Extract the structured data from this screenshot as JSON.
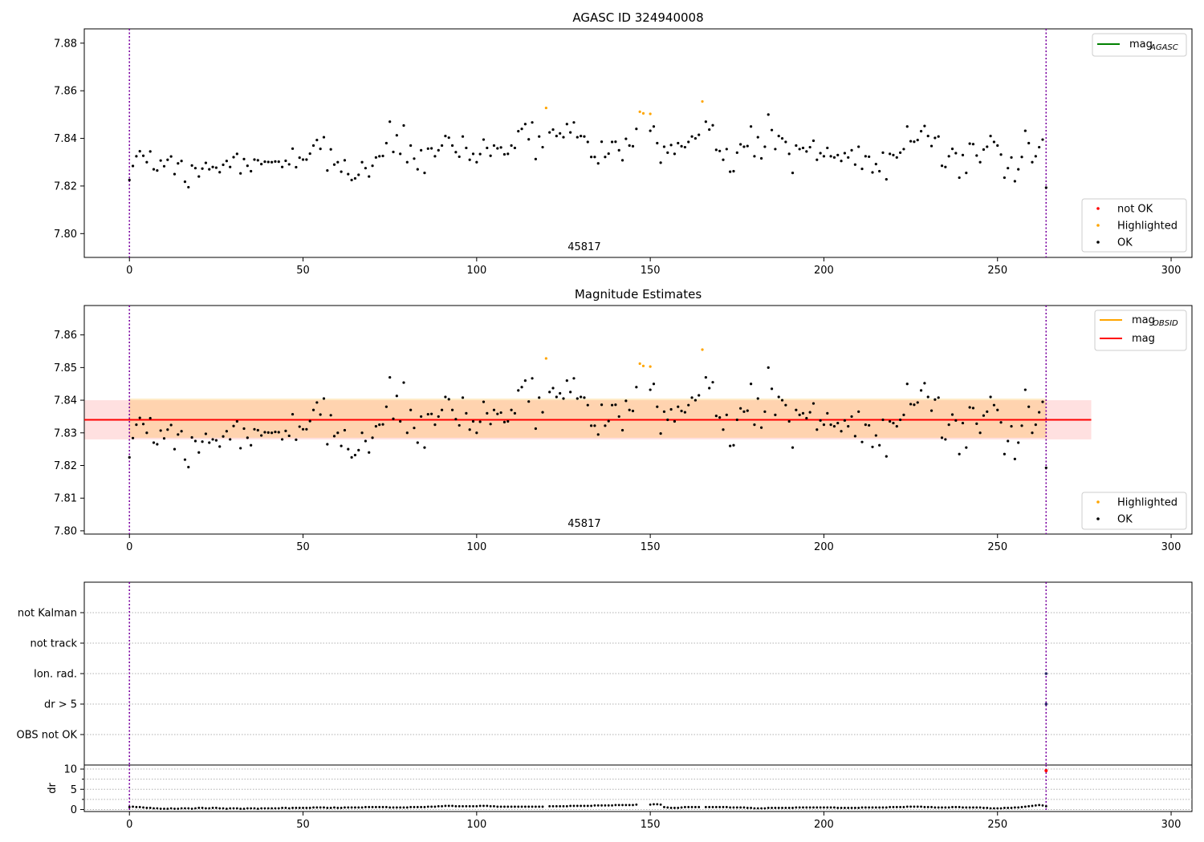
{
  "chart_data": [
    {
      "type": "scatter",
      "title": "AGASC ID 324940008",
      "annotation": "45817",
      "xlim": [
        -13,
        306
      ],
      "ylim": [
        7.79,
        7.886
      ],
      "xticks": [
        0,
        50,
        100,
        150,
        200,
        250,
        300
      ],
      "yticks": [
        7.8,
        7.82,
        7.84,
        7.86,
        7.88
      ],
      "vlines": [
        0,
        264
      ],
      "legend_lines": [
        {
          "label": "mag",
          "sub": "AGASC",
          "color": "#008000"
        }
      ],
      "legend_points": [
        {
          "label": "not OK",
          "color": "#ff0000"
        },
        {
          "label": "Highlighted",
          "color": "#ffa500"
        },
        {
          "label": "OK",
          "color": "#000000"
        }
      ],
      "legend_lines_loc": "upper right",
      "legend_points_loc": "lower right"
    },
    {
      "type": "scatter",
      "title": "Magnitude Estimates",
      "annotation": "45817",
      "xlim": [
        -13,
        306
      ],
      "ylim": [
        7.799,
        7.869
      ],
      "xticks": [
        0,
        50,
        100,
        150,
        200,
        250,
        300
      ],
      "yticks": [
        7.8,
        7.81,
        7.82,
        7.83,
        7.84,
        7.85,
        7.86
      ],
      "vlines": [
        0,
        264
      ],
      "mag_line": 7.834,
      "band_mag": [
        7.828,
        7.84
      ],
      "band_obsid": [
        7.8285,
        7.8405
      ],
      "band_x_end": 277,
      "legend_lines": [
        {
          "label": "mag",
          "sub": "OBSID",
          "color": "#ffa500"
        },
        {
          "label": "mag",
          "sub": "",
          "color": "#ff0000"
        }
      ],
      "legend_points": [
        {
          "label": "Highlighted",
          "color": "#ffa500"
        },
        {
          "label": "OK",
          "color": "#000000"
        }
      ],
      "legend_lines_loc": "upper right",
      "legend_points_loc": "lower right"
    },
    {
      "type": "scatter",
      "title": "",
      "xlim": [
        -13,
        306
      ],
      "yticks_labels": [
        "not Kalman",
        "not track",
        "Ion. rad.",
        "dr > 5",
        "OBS not OK"
      ],
      "vlines": [
        0,
        264
      ],
      "flag_marks": [
        {
          "flag": "Ion. rad.",
          "x": 264
        },
        {
          "flag": "dr > 5",
          "x": 264
        }
      ]
    },
    {
      "type": "scatter",
      "title": "",
      "ylabel": "dr",
      "xlim": [
        -13,
        306
      ],
      "ylim": [
        -0.5,
        11
      ],
      "yticks": [
        0,
        5,
        10
      ],
      "xticks": [
        0,
        50,
        100,
        150,
        200,
        250,
        300
      ],
      "vlines": [
        0,
        264
      ],
      "red_point": {
        "x": 264,
        "y": 9.6
      }
    }
  ],
  "series": {
    "x": [
      0,
      1,
      2,
      3,
      4,
      5,
      6,
      7,
      8,
      9,
      10,
      11,
      12,
      13,
      14,
      15,
      16,
      17,
      18,
      19,
      20,
      21,
      22,
      23,
      24,
      25,
      26,
      27,
      28,
      29,
      30,
      31,
      32,
      33,
      34,
      35,
      36,
      37,
      38,
      39,
      40,
      41,
      42,
      43,
      44,
      45,
      46,
      47,
      48,
      49,
      50,
      51,
      52,
      53,
      54,
      55,
      56,
      57,
      58,
      59,
      60,
      61,
      62,
      63,
      64,
      65,
      66,
      67,
      68,
      69,
      70,
      71,
      72,
      73,
      74,
      75,
      76,
      77,
      78,
      79,
      80,
      81,
      82,
      83,
      84,
      85,
      86,
      87,
      88,
      89,
      90,
      91,
      92,
      93,
      94,
      95,
      96,
      97,
      98,
      99,
      100,
      101,
      102,
      103,
      104,
      105,
      106,
      107,
      108,
      109,
      110,
      111,
      112,
      113,
      114,
      115,
      116,
      117,
      118,
      119,
      121,
      122,
      123,
      124,
      125,
      126,
      127,
      128,
      129,
      130,
      131,
      132,
      133,
      134,
      135,
      136,
      137,
      138,
      139,
      140,
      141,
      142,
      143,
      144,
      145,
      146,
      150,
      151,
      152,
      153,
      154,
      155,
      156,
      157,
      158,
      159,
      160,
      161,
      162,
      163,
      164,
      166,
      167,
      168,
      169,
      170,
      171,
      172,
      173,
      174,
      175,
      176,
      177,
      178,
      179,
      180,
      181,
      182,
      183,
      184,
      185,
      186,
      187,
      188,
      189,
      190,
      191,
      192,
      193,
      194,
      195,
      196,
      197,
      198,
      199,
      200,
      201,
      202,
      203,
      204,
      205,
      206,
      207,
      208,
      209,
      210,
      211,
      212,
      213,
      214,
      215,
      216,
      217,
      218,
      219,
      220,
      221,
      222,
      223,
      224,
      225,
      226,
      227,
      228,
      229,
      230,
      231,
      232,
      233,
      234,
      235,
      236,
      237,
      238,
      239,
      240,
      241,
      242,
      243,
      244,
      245,
      246,
      247,
      248,
      249,
      250,
      251,
      252,
      253,
      254,
      255,
      256,
      257,
      258,
      259,
      260,
      261,
      262,
      263,
      264
    ],
    "y": [
      7.8225,
      7.8284,
      7.8325,
      7.8346,
      7.8327,
      7.83,
      7.8345,
      7.827,
      7.8265,
      7.8307,
      7.8283,
      7.831,
      7.8324,
      7.825,
      7.8295,
      7.8305,
      7.8218,
      7.8195,
      7.8286,
      7.8275,
      7.824,
      7.8273,
      7.8297,
      7.827,
      7.828,
      7.8277,
      7.8258,
      7.8289,
      7.8305,
      7.828,
      7.8321,
      7.8335,
      7.8253,
      7.8313,
      7.8285,
      7.8262,
      7.8311,
      7.8308,
      7.8292,
      7.8302,
      7.8301,
      7.83,
      7.8303,
      7.8302,
      7.828,
      7.8306,
      7.8291,
      7.8357,
      7.8279,
      7.8319,
      7.8311,
      7.8311,
      7.8336,
      7.837,
      7.8393,
      7.8356,
      7.8405,
      7.8265,
      7.8354,
      7.829,
      7.83,
      7.826,
      7.8308,
      7.825,
      7.8225,
      7.8232,
      7.8247,
      7.83,
      7.8275,
      7.824,
      7.8285,
      7.832,
      7.8325,
      7.8326,
      7.838,
      7.847,
      7.8343,
      7.8413,
      7.8335,
      7.8454,
      7.83,
      7.837,
      7.8315,
      7.827,
      7.835,
      7.8255,
      7.8357,
      7.8358,
      7.8325,
      7.835,
      7.837,
      7.841,
      7.8403,
      7.837,
      7.8342,
      7.8323,
      7.8408,
      7.836,
      7.831,
      7.8335,
      7.83,
      7.8334,
      7.8395,
      7.836,
      7.8327,
      7.837,
      7.8358,
      7.8362,
      7.8333,
      7.8335,
      7.837,
      7.836,
      7.843,
      7.844,
      7.846,
      7.8396,
      7.8467,
      7.8313,
      7.8408,
      7.8363,
      7.8425,
      7.8437,
      7.841,
      7.8421,
      7.8405,
      7.846,
      7.8425,
      7.8467,
      7.8405,
      7.841,
      7.8408,
      7.8385,
      7.8322,
      7.8322,
      7.8295,
      7.8386,
      7.8322,
      7.8336,
      7.8385,
      7.8386,
      7.835,
      7.8308,
      7.8398,
      7.837,
      7.8367,
      7.844,
      7.8432,
      7.845,
      7.838,
      7.8298,
      7.8365,
      7.834,
      7.8372,
      7.8335,
      7.838,
      7.8367,
      7.8363,
      7.8385,
      7.8408,
      7.84,
      7.8415,
      7.847,
      7.8437,
      7.8455,
      7.8352,
      7.8347,
      7.831,
      7.8355,
      7.826,
      7.8262,
      7.834,
      7.8375,
      7.8365,
      7.8368,
      7.845,
      7.8325,
      7.8405,
      7.8316,
      7.8365,
      7.85,
      7.8435,
      7.8355,
      7.841,
      7.84,
      7.8385,
      7.8335,
      7.8255,
      7.837,
      7.8355,
      7.836,
      7.8345,
      7.8363,
      7.839,
      7.831,
      7.8338,
      7.8325,
      7.836,
      7.8325,
      7.832,
      7.833,
      7.8305,
      7.8338,
      7.832,
      7.835,
      7.829,
      7.8365,
      7.8272,
      7.8325,
      7.8323,
      7.8257,
      7.8292,
      7.8262,
      7.834,
      7.8228,
      7.8335,
      7.833,
      7.832,
      7.834,
      7.8355,
      7.845,
      7.8388,
      7.8386,
      7.8393,
      7.843,
      7.8452,
      7.841,
      7.8368,
      7.8402,
      7.8408,
      7.8285,
      7.828,
      7.8325,
      7.8356,
      7.8338,
      7.8235,
      7.833,
      7.8255,
      7.8378,
      7.8376,
      7.8328,
      7.83,
      7.8353,
      7.8365,
      7.841,
      7.8385,
      7.837,
      7.8332,
      7.8235,
      7.8275,
      7.832,
      7.822,
      7.827,
      7.8322,
      7.8432,
      7.838,
      7.83,
      7.8325,
      7.8363,
      7.8395,
      7.8193
    ],
    "highlighted_x": [
      120,
      147,
      148,
      150,
      165
    ],
    "highlighted_y": [
      7.8528,
      7.8512,
      7.8505,
      7.8503,
      7.8555
    ],
    "dr": [
      0.6,
      0.7,
      0.6,
      0.6,
      0.5,
      0.4,
      0.4,
      0.3,
      0.3,
      0.2,
      0.2,
      0.2,
      0.3,
      0.2,
      0.2,
      0.3,
      0.3,
      0.3,
      0.2,
      0.3,
      0.4,
      0.4,
      0.3,
      0.3,
      0.4,
      0.4,
      0.3,
      0.3,
      0.2,
      0.3,
      0.3,
      0.3,
      0.2,
      0.2,
      0.3,
      0.3,
      0.3,
      0.2,
      0.3,
      0.3,
      0.3,
      0.3,
      0.3,
      0.3,
      0.4,
      0.4,
      0.3,
      0.4,
      0.4,
      0.4,
      0.4,
      0.4,
      0.4,
      0.5,
      0.5,
      0.5,
      0.5,
      0.4,
      0.4,
      0.5,
      0.4,
      0.4,
      0.5,
      0.5,
      0.5,
      0.5,
      0.5,
      0.5,
      0.6,
      0.6,
      0.6,
      0.6,
      0.6,
      0.6,
      0.6,
      0.5,
      0.5,
      0.5,
      0.5,
      0.5,
      0.5,
      0.6,
      0.6,
      0.6,
      0.6,
      0.6,
      0.7,
      0.7,
      0.7,
      0.8,
      0.8,
      0.9,
      0.9,
      0.9,
      0.8,
      0.8,
      0.8,
      0.8,
      0.8,
      0.8,
      0.8,
      0.9,
      0.9,
      0.9,
      0.8,
      0.8,
      0.7,
      0.7,
      0.7,
      0.7,
      0.7,
      0.7,
      0.7,
      0.7,
      0.7,
      0.7,
      0.7,
      0.7,
      0.7,
      0.7,
      0.8,
      0.8,
      0.8,
      0.8,
      0.8,
      0.8,
      0.9,
      0.9,
      0.9,
      0.9,
      0.9,
      0.9,
      0.9,
      1.0,
      1.0,
      1.0,
      1.0,
      1.0,
      1.0,
      1.1,
      1.1,
      1.1,
      1.1,
      1.1,
      1.1,
      1.2,
      1.2,
      1.3,
      1.3,
      1.2,
      0.6,
      0.5,
      0.4,
      0.4,
      0.4,
      0.5,
      0.6,
      0.6,
      0.6,
      0.6,
      0.6,
      0.6,
      0.6,
      0.6,
      0.6,
      0.6,
      0.6,
      0.6,
      0.5,
      0.5,
      0.5,
      0.5,
      0.5,
      0.4,
      0.4,
      0.3,
      0.3,
      0.3,
      0.3,
      0.4,
      0.4,
      0.4,
      0.4,
      0.4,
      0.4,
      0.4,
      0.4,
      0.5,
      0.5,
      0.5,
      0.5,
      0.5,
      0.5,
      0.5,
      0.5,
      0.5,
      0.5,
      0.5,
      0.5,
      0.4,
      0.4,
      0.4,
      0.4,
      0.4,
      0.4,
      0.4,
      0.5,
      0.5,
      0.5,
      0.5,
      0.5,
      0.5,
      0.5,
      0.5,
      0.6,
      0.6,
      0.6,
      0.6,
      0.6,
      0.7,
      0.7,
      0.7,
      0.7,
      0.7,
      0.6,
      0.6,
      0.6,
      0.5,
      0.5,
      0.5,
      0.5,
      0.5,
      0.6,
      0.6,
      0.6,
      0.5,
      0.5,
      0.5,
      0.5,
      0.5,
      0.5,
      0.4,
      0.4,
      0.3,
      0.3,
      0.3,
      0.3,
      0.4,
      0.4,
      0.4,
      0.5,
      0.5,
      0.6,
      0.7,
      0.8,
      0.9,
      1.0,
      1.1,
      1.0,
      0.8
    ]
  }
}
